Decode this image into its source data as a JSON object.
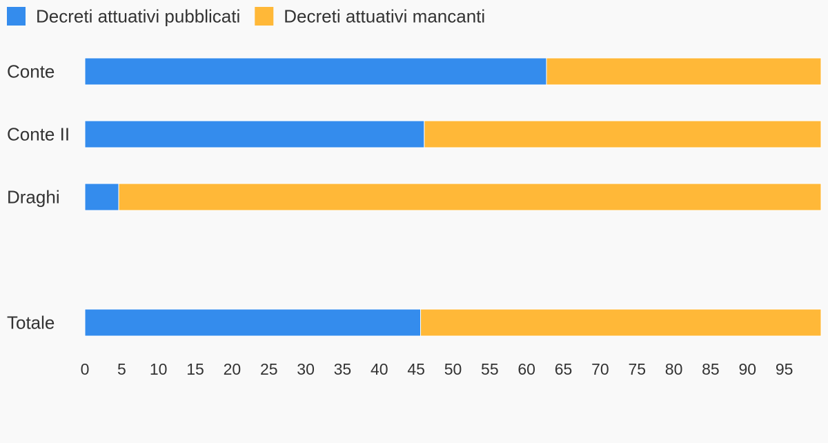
{
  "chart_data": {
    "type": "bar",
    "orientation": "horizontal",
    "stacked": true,
    "categories": [
      "Conte",
      "Conte II",
      "Draghi",
      "",
      "Totale"
    ],
    "series": [
      {
        "name": "Decreti attuativi pubblicati",
        "color": "#348ced",
        "values": [
          62.7,
          46.1,
          4.6,
          null,
          45.6
        ]
      },
      {
        "name": "Decreti attuativi mancanti",
        "color": "#ffb838",
        "values": [
          37.3,
          53.9,
          95.4,
          null,
          54.4
        ]
      }
    ],
    "xlim": [
      0,
      100
    ],
    "xticks": [
      "0",
      "5",
      "10",
      "15",
      "20",
      "25",
      "30",
      "35",
      "40",
      "45",
      "50",
      "55",
      "60",
      "65",
      "70",
      "75",
      "80",
      "85",
      "90",
      "95"
    ],
    "legend_position": "top-left",
    "grid": false
  }
}
